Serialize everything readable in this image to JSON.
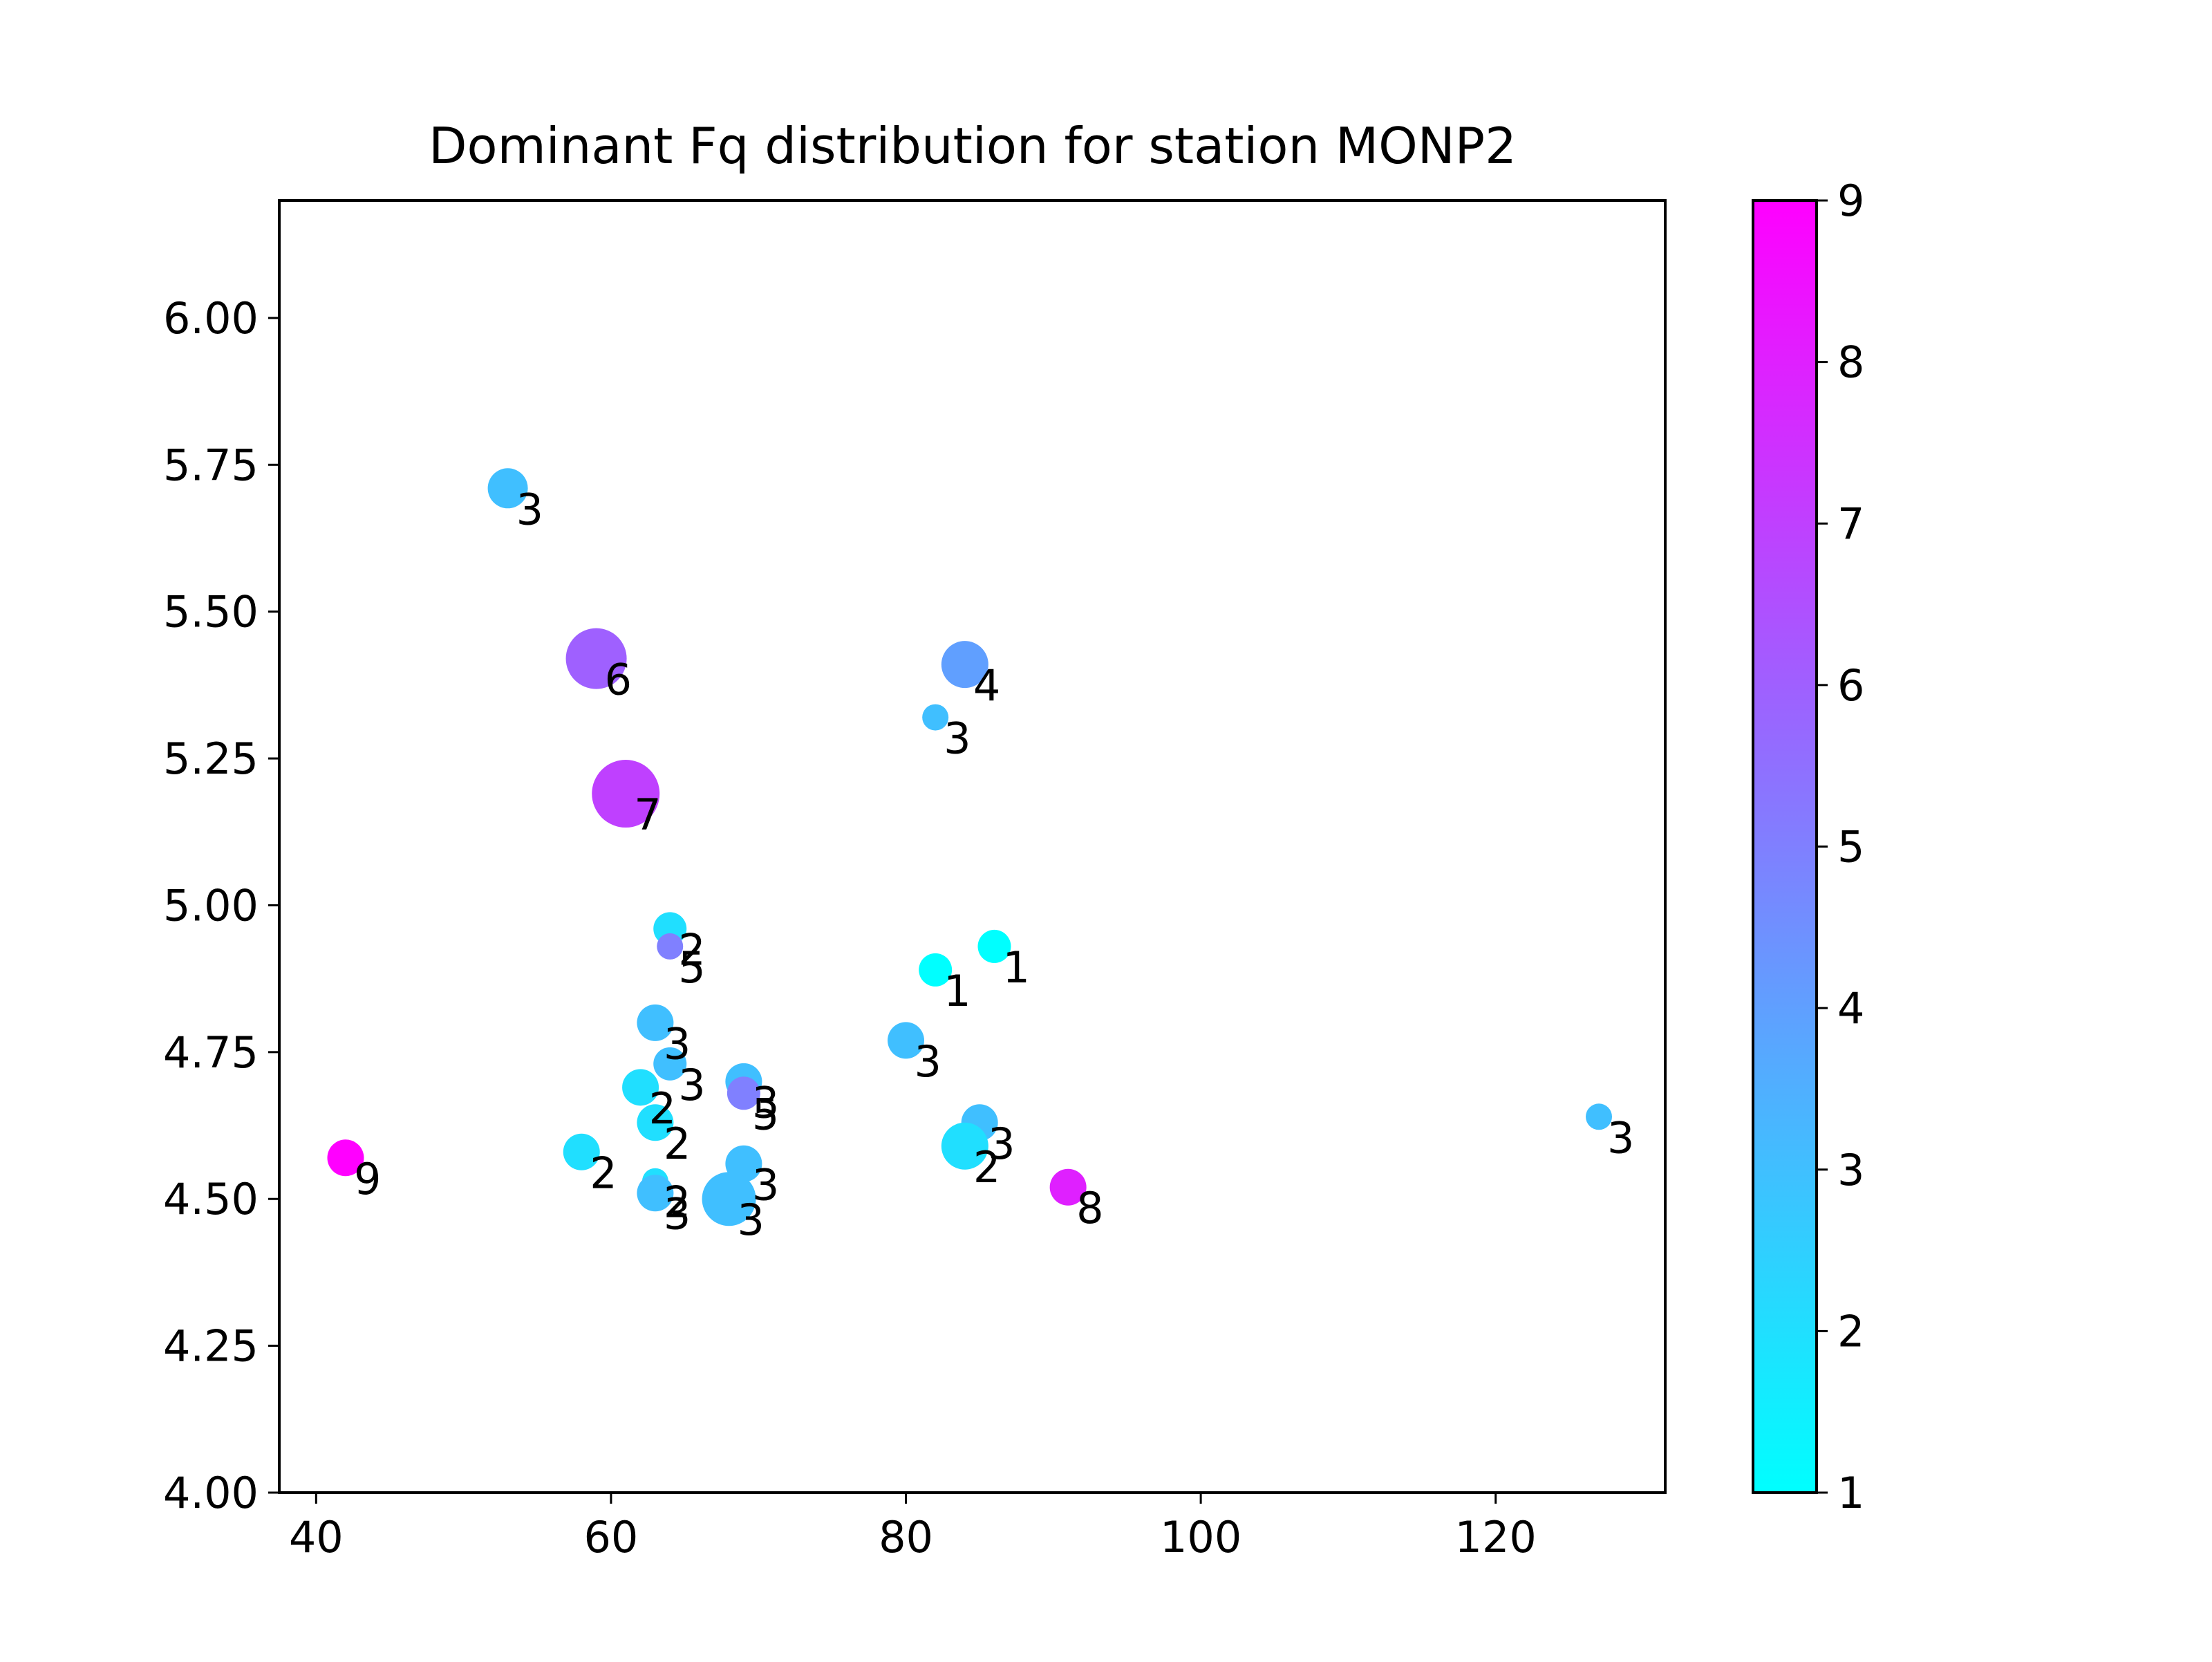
{
  "chart_data": {
    "type": "scatter",
    "title": "Dominant Fq distribution for station MONP2",
    "xlabel": "",
    "ylabel": "",
    "xlim": [
      37.5,
      131.5
    ],
    "ylim": [
      4.0,
      6.2
    ],
    "x_ticks": [
      40,
      60,
      80,
      100,
      120
    ],
    "y_ticks": [
      4.0,
      4.25,
      4.5,
      4.75,
      5.0,
      5.25,
      5.5,
      5.75,
      6.0
    ],
    "y_tick_labels": [
      "4.00",
      "4.25",
      "4.50",
      "4.75",
      "5.00",
      "5.25",
      "5.50",
      "5.75",
      "6.00"
    ],
    "grid": false,
    "colormap": "cool",
    "colorbar": {
      "min": 1,
      "max": 9,
      "ticks": [
        1,
        2,
        3,
        4,
        5,
        6,
        7,
        8,
        9
      ],
      "low_color": "#00ffff",
      "high_color": "#ff00ff"
    },
    "points": [
      {
        "x": 53,
        "y": 5.71,
        "label": "3",
        "weight": 3
      },
      {
        "x": 59,
        "y": 5.42,
        "label": "6",
        "weight": 6
      },
      {
        "x": 61,
        "y": 5.19,
        "label": "7",
        "weight": 7
      },
      {
        "x": 84,
        "y": 5.41,
        "label": "4",
        "weight": 4
      },
      {
        "x": 82,
        "y": 5.32,
        "label": "3",
        "weight": 1
      },
      {
        "x": 64,
        "y": 4.96,
        "label": "2",
        "weight": 2
      },
      {
        "x": 64,
        "y": 4.93,
        "label": "5",
        "weight": 1
      },
      {
        "x": 86,
        "y": 4.93,
        "label": "1",
        "weight": 2
      },
      {
        "x": 82,
        "y": 4.89,
        "label": "1",
        "weight": 2
      },
      {
        "x": 63,
        "y": 4.8,
        "label": "3",
        "weight": 2.5
      },
      {
        "x": 80,
        "y": 4.77,
        "label": "3",
        "weight": 2.5
      },
      {
        "x": 64,
        "y": 4.73,
        "label": "3",
        "weight": 2
      },
      {
        "x": 69,
        "y": 4.7,
        "label": "3",
        "weight": 2.5
      },
      {
        "x": 69,
        "y": 4.68,
        "label": "5",
        "weight": 2
      },
      {
        "x": 62,
        "y": 4.69,
        "label": "2",
        "weight": 2.5
      },
      {
        "x": 63,
        "y": 4.63,
        "label": "2",
        "weight": 2.5
      },
      {
        "x": 85,
        "y": 4.63,
        "label": "3",
        "weight": 2.5
      },
      {
        "x": 84,
        "y": 4.59,
        "label": "2",
        "weight": 4
      },
      {
        "x": 58,
        "y": 4.58,
        "label": "2",
        "weight": 2.5
      },
      {
        "x": 42,
        "y": 4.57,
        "label": "9",
        "weight": 2.5
      },
      {
        "x": 69,
        "y": 4.56,
        "label": "3",
        "weight": 2.5
      },
      {
        "x": 63,
        "y": 4.53,
        "label": "2",
        "weight": 1
      },
      {
        "x": 63,
        "y": 4.51,
        "label": "3",
        "weight": 2.5
      },
      {
        "x": 68,
        "y": 4.5,
        "label": "3",
        "weight": 5
      },
      {
        "x": 91,
        "y": 4.52,
        "label": "8",
        "weight": 2.5
      },
      {
        "x": 127,
        "y": 4.64,
        "label": "3",
        "weight": 1
      }
    ]
  }
}
